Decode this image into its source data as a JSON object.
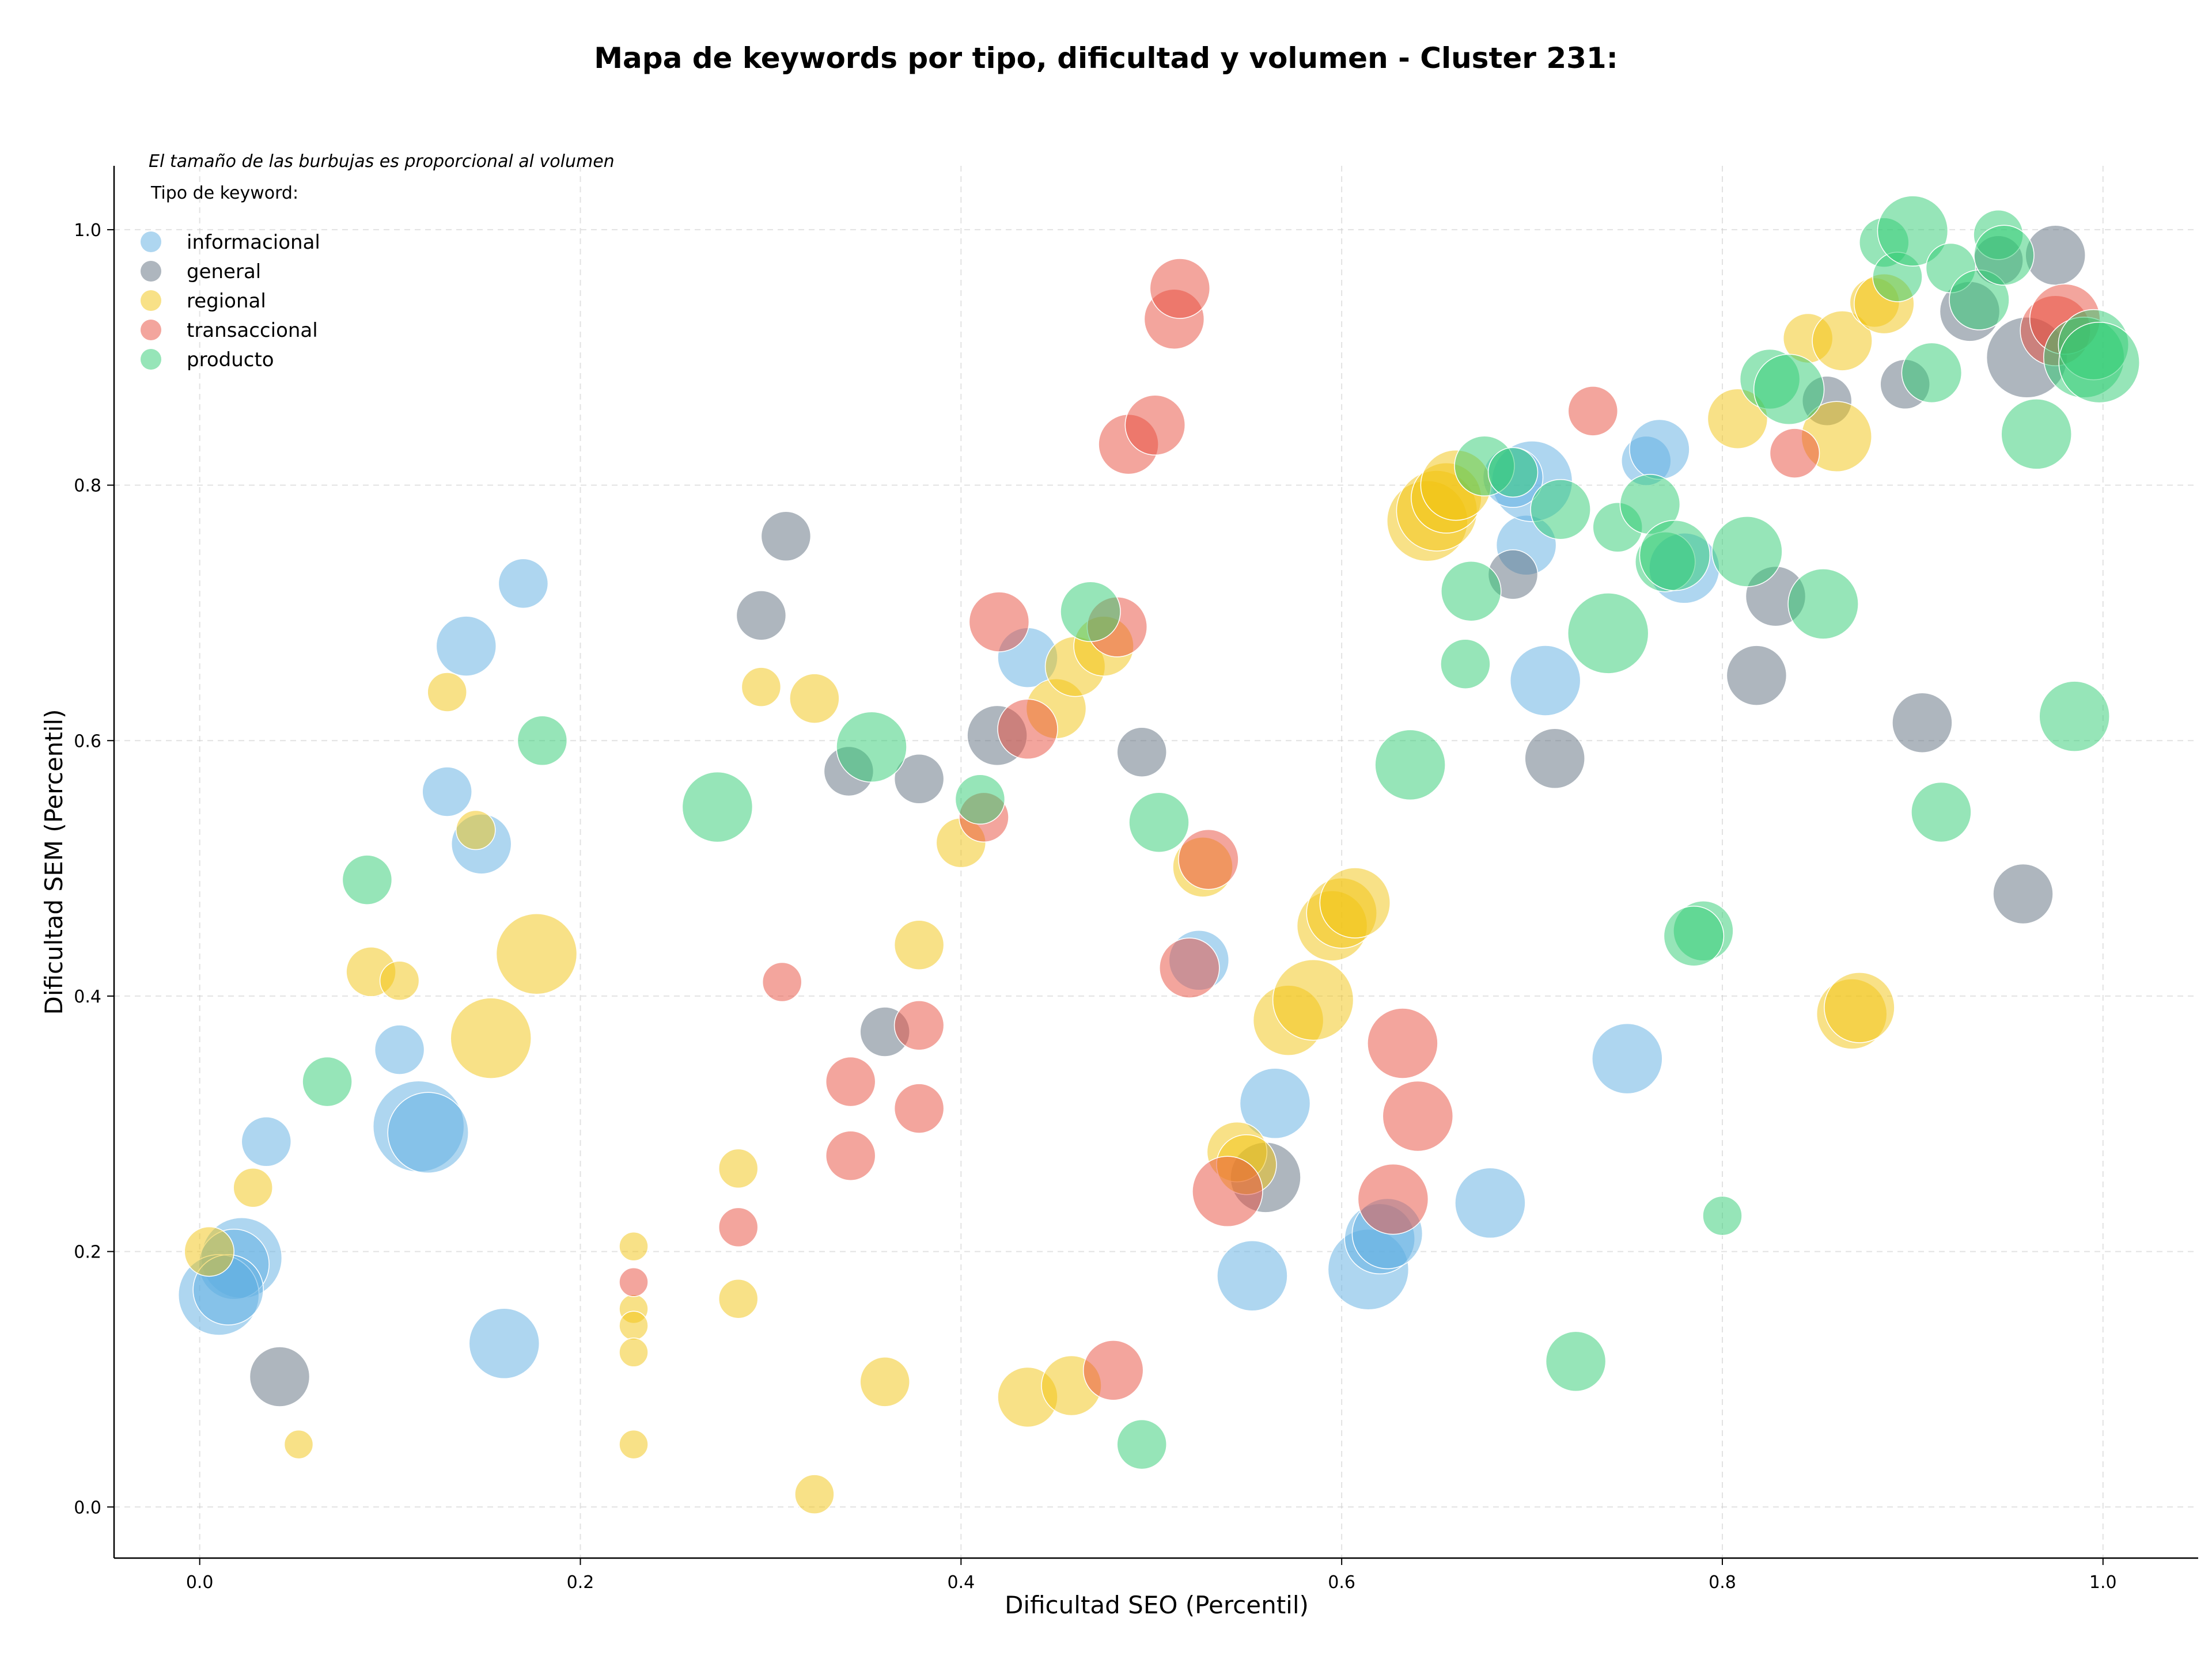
{
  "chart_data": {
    "type": "scatter",
    "title": "Mapa de keywords por tipo, dificultad y volumen - Cluster 231:",
    "xlabel": "Dificultad SEO (Percentil)",
    "ylabel": "Dificultad SEM (Percentil)",
    "xlim": [
      -0.045,
      1.05
    ],
    "ylim": [
      -0.04,
      1.05
    ],
    "x_ticks": [
      "0.0",
      "0.2",
      "0.4",
      "0.6",
      "0.8",
      "1.0"
    ],
    "y_ticks": [
      "0.0",
      "0.2",
      "0.4",
      "0.6",
      "0.8",
      "1.0"
    ],
    "grid": true,
    "note": "El tamaño de las burbujas es proporcional al volumen",
    "legend_title": "Tipo de keyword:",
    "legend_position": "top-left",
    "series": [
      {
        "name": "informacional",
        "color": "#5dade2",
        "points": [
          [
            0.17,
            0.723,
            3
          ],
          [
            0.14,
            0.674,
            4
          ],
          [
            0.13,
            0.56,
            3
          ],
          [
            0.148,
            0.519,
            4
          ],
          [
            0.105,
            0.358,
            3
          ],
          [
            0.035,
            0.286,
            3
          ],
          [
            0.115,
            0.298,
            7
          ],
          [
            0.12,
            0.293,
            6
          ],
          [
            0.022,
            0.195,
            6
          ],
          [
            0.018,
            0.19,
            5
          ],
          [
            0.01,
            0.166,
            6
          ],
          [
            0.015,
            0.17,
            5
          ],
          [
            0.16,
            0.128,
            5
          ],
          [
            0.435,
            0.665,
            4
          ],
          [
            0.525,
            0.428,
            4
          ],
          [
            0.565,
            0.316,
            5
          ],
          [
            0.553,
            0.181,
            5
          ],
          [
            0.614,
            0.186,
            6
          ],
          [
            0.62,
            0.21,
            5
          ],
          [
            0.624,
            0.214,
            5
          ],
          [
            0.678,
            0.238,
            5
          ],
          [
            0.707,
            0.647,
            5
          ],
          [
            0.697,
            0.753,
            4
          ],
          [
            0.7,
            0.803,
            6
          ],
          [
            0.69,
            0.806,
            4
          ],
          [
            0.75,
            0.351,
            5
          ],
          [
            0.76,
            0.819,
            3
          ],
          [
            0.767,
            0.828,
            4
          ],
          [
            0.78,
            0.735,
            5
          ]
        ]
      },
      {
        "name": "general",
        "color": "#5d6d7e",
        "points": [
          [
            0.308,
            0.76,
            3
          ],
          [
            0.295,
            0.698,
            3
          ],
          [
            0.341,
            0.576,
            3
          ],
          [
            0.378,
            0.57,
            3
          ],
          [
            0.36,
            0.372,
            3
          ],
          [
            0.042,
            0.102,
            4
          ],
          [
            0.419,
            0.604,
            4
          ],
          [
            0.495,
            0.591,
            3
          ],
          [
            0.56,
            0.258,
            5
          ],
          [
            0.69,
            0.73,
            3
          ],
          [
            0.712,
            0.586,
            4
          ],
          [
            0.818,
            0.651,
            4
          ],
          [
            0.828,
            0.713,
            4
          ],
          [
            0.855,
            0.866,
            3
          ],
          [
            0.896,
            0.879,
            3
          ],
          [
            0.905,
            0.614,
            4
          ],
          [
            0.93,
            0.936,
            4
          ],
          [
            0.945,
            0.976,
            3
          ],
          [
            0.96,
            0.9,
            6
          ],
          [
            0.975,
            0.98,
            4
          ],
          [
            0.958,
            0.48,
            4
          ]
        ]
      },
      {
        "name": "regional",
        "color": "#f1c40f",
        "points": [
          [
            0.13,
            0.638,
            2
          ],
          [
            0.145,
            0.53,
            2
          ],
          [
            0.09,
            0.419,
            3
          ],
          [
            0.105,
            0.412,
            2
          ],
          [
            0.177,
            0.433,
            6
          ],
          [
            0.153,
            0.367,
            6
          ],
          [
            0.028,
            0.25,
            2
          ],
          [
            0.005,
            0.2,
            3
          ],
          [
            0.052,
            0.049,
            1
          ],
          [
            0.228,
            0.204,
            1
          ],
          [
            0.228,
            0.155,
            1
          ],
          [
            0.228,
            0.142,
            1
          ],
          [
            0.228,
            0.121,
            1
          ],
          [
            0.228,
            0.049,
            1
          ],
          [
            0.283,
            0.265,
            2
          ],
          [
            0.283,
            0.163,
            2
          ],
          [
            0.295,
            0.642,
            2
          ],
          [
            0.323,
            0.633,
            3
          ],
          [
            0.323,
            0.01,
            2
          ],
          [
            0.36,
            0.098,
            3
          ],
          [
            0.378,
            0.44,
            3
          ],
          [
            0.4,
            0.52,
            3
          ],
          [
            0.435,
            0.086,
            4
          ],
          [
            0.458,
            0.095,
            4
          ],
          [
            0.45,
            0.625,
            4
          ],
          [
            0.46,
            0.658,
            4
          ],
          [
            0.475,
            0.674,
            4
          ],
          [
            0.527,
            0.501,
            4
          ],
          [
            0.545,
            0.278,
            4
          ],
          [
            0.55,
            0.268,
            4
          ],
          [
            0.572,
            0.381,
            5
          ],
          [
            0.585,
            0.397,
            6
          ],
          [
            0.595,
            0.455,
            5
          ],
          [
            0.6,
            0.465,
            5
          ],
          [
            0.607,
            0.473,
            5
          ],
          [
            0.645,
            0.772,
            6
          ],
          [
            0.65,
            0.78,
            6
          ],
          [
            0.655,
            0.79,
            5
          ],
          [
            0.66,
            0.8,
            5
          ],
          [
            0.808,
            0.852,
            4
          ],
          [
            0.845,
            0.915,
            3
          ],
          [
            0.86,
            0.838,
            5
          ],
          [
            0.863,
            0.913,
            4
          ],
          [
            0.88,
            0.943,
            3
          ],
          [
            0.885,
            0.942,
            4
          ],
          [
            0.868,
            0.386,
            5
          ],
          [
            0.872,
            0.391,
            5
          ]
        ]
      },
      {
        "name": "transaccional",
        "color": "#e74c3c",
        "points": [
          [
            0.306,
            0.411,
            2
          ],
          [
            0.283,
            0.219,
            2
          ],
          [
            0.228,
            0.176,
            1
          ],
          [
            0.342,
            0.333,
            3
          ],
          [
            0.342,
            0.275,
            3
          ],
          [
            0.378,
            0.377,
            3
          ],
          [
            0.378,
            0.312,
            3
          ],
          [
            0.42,
            0.693,
            4
          ],
          [
            0.435,
            0.609,
            4
          ],
          [
            0.412,
            0.54,
            3
          ],
          [
            0.482,
            0.689,
            4
          ],
          [
            0.488,
            0.832,
            4
          ],
          [
            0.502,
            0.847,
            4
          ],
          [
            0.512,
            0.93,
            4
          ],
          [
            0.515,
            0.954,
            4
          ],
          [
            0.48,
            0.107,
            4
          ],
          [
            0.52,
            0.422,
            4
          ],
          [
            0.53,
            0.507,
            4
          ],
          [
            0.54,
            0.247,
            5
          ],
          [
            0.632,
            0.363,
            5
          ],
          [
            0.64,
            0.306,
            5
          ],
          [
            0.627,
            0.241,
            5
          ],
          [
            0.732,
            0.858,
            3
          ],
          [
            0.838,
            0.825,
            3
          ],
          [
            0.975,
            0.921,
            5
          ],
          [
            0.98,
            0.93,
            5
          ]
        ]
      },
      {
        "name": "producto",
        "color": "#2ecc71",
        "points": [
          [
            0.18,
            0.6,
            3
          ],
          [
            0.088,
            0.491,
            3
          ],
          [
            0.067,
            0.333,
            3
          ],
          [
            0.272,
            0.548,
            5
          ],
          [
            0.353,
            0.595,
            5
          ],
          [
            0.41,
            0.554,
            3
          ],
          [
            0.468,
            0.701,
            4
          ],
          [
            0.504,
            0.536,
            4
          ],
          [
            0.495,
            0.049,
            3
          ],
          [
            0.636,
            0.581,
            5
          ],
          [
            0.665,
            0.66,
            3
          ],
          [
            0.668,
            0.717,
            4
          ],
          [
            0.675,
            0.815,
            4
          ],
          [
            0.69,
            0.81,
            3
          ],
          [
            0.715,
            0.781,
            4
          ],
          [
            0.723,
            0.114,
            4
          ],
          [
            0.74,
            0.684,
            6
          ],
          [
            0.745,
            0.767,
            3
          ],
          [
            0.762,
            0.785,
            4
          ],
          [
            0.77,
            0.74,
            4
          ],
          [
            0.775,
            0.745,
            5
          ],
          [
            0.8,
            0.228,
            2
          ],
          [
            0.79,
            0.451,
            4
          ],
          [
            0.785,
            0.447,
            4
          ],
          [
            0.813,
            0.748,
            5
          ],
          [
            0.825,
            0.883,
            4
          ],
          [
            0.835,
            0.875,
            5
          ],
          [
            0.853,
            0.707,
            5
          ],
          [
            0.885,
            0.99,
            3
          ],
          [
            0.892,
            0.963,
            3
          ],
          [
            0.9,
            0.999,
            5
          ],
          [
            0.91,
            0.888,
            4
          ],
          [
            0.915,
            0.544,
            4
          ],
          [
            0.92,
            0.97,
            3
          ],
          [
            0.935,
            0.945,
            4
          ],
          [
            0.945,
            0.996,
            3
          ],
          [
            0.948,
            0.98,
            4
          ],
          [
            0.965,
            0.84,
            5
          ],
          [
            0.985,
            0.619,
            5
          ],
          [
            0.99,
            0.9,
            6
          ],
          [
            0.995,
            0.91,
            5
          ],
          [
            0.998,
            0.896,
            6
          ]
        ]
      }
    ]
  }
}
